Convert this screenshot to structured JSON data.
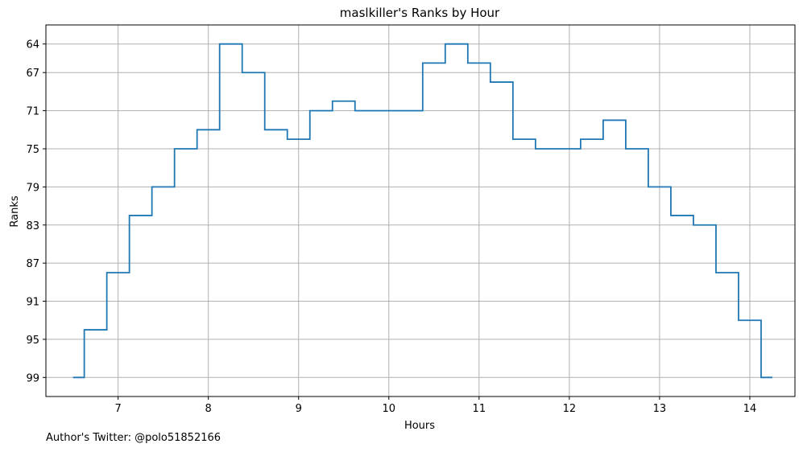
{
  "footer": {
    "credit": "Author's Twitter: @polo51852166"
  },
  "chart_data": {
    "type": "line",
    "title": "maslkiller's Ranks by Hour",
    "xlabel": "Hours",
    "ylabel": "Ranks",
    "xlim": [
      6.2,
      14.5
    ],
    "ylim": [
      101,
      62
    ],
    "y_inverted": true,
    "grid": true,
    "line_color": "#1f77b4",
    "step_style": "mid",
    "xticks": [
      7,
      8,
      9,
      10,
      11,
      12,
      13,
      14
    ],
    "yticks": [
      64,
      67,
      71,
      75,
      79,
      83,
      87,
      91,
      95,
      99
    ],
    "x": [
      6.5,
      6.75,
      7.0,
      7.25,
      7.5,
      7.75,
      8.0,
      8.25,
      8.5,
      8.75,
      9.0,
      9.25,
      9.5,
      9.75,
      10.0,
      10.25,
      10.5,
      10.75,
      11.0,
      11.25,
      11.5,
      11.75,
      12.0,
      12.25,
      12.5,
      12.75,
      13.0,
      13.25,
      13.5,
      13.75,
      14.0,
      14.25
    ],
    "y": [
      99,
      94,
      88,
      82,
      79,
      75,
      73,
      64,
      67,
      73,
      74,
      71,
      70,
      71,
      71,
      71,
      66,
      64,
      66,
      68,
      74,
      75,
      75,
      74,
      72,
      75,
      79,
      82,
      83,
      88,
      93,
      99
    ]
  }
}
